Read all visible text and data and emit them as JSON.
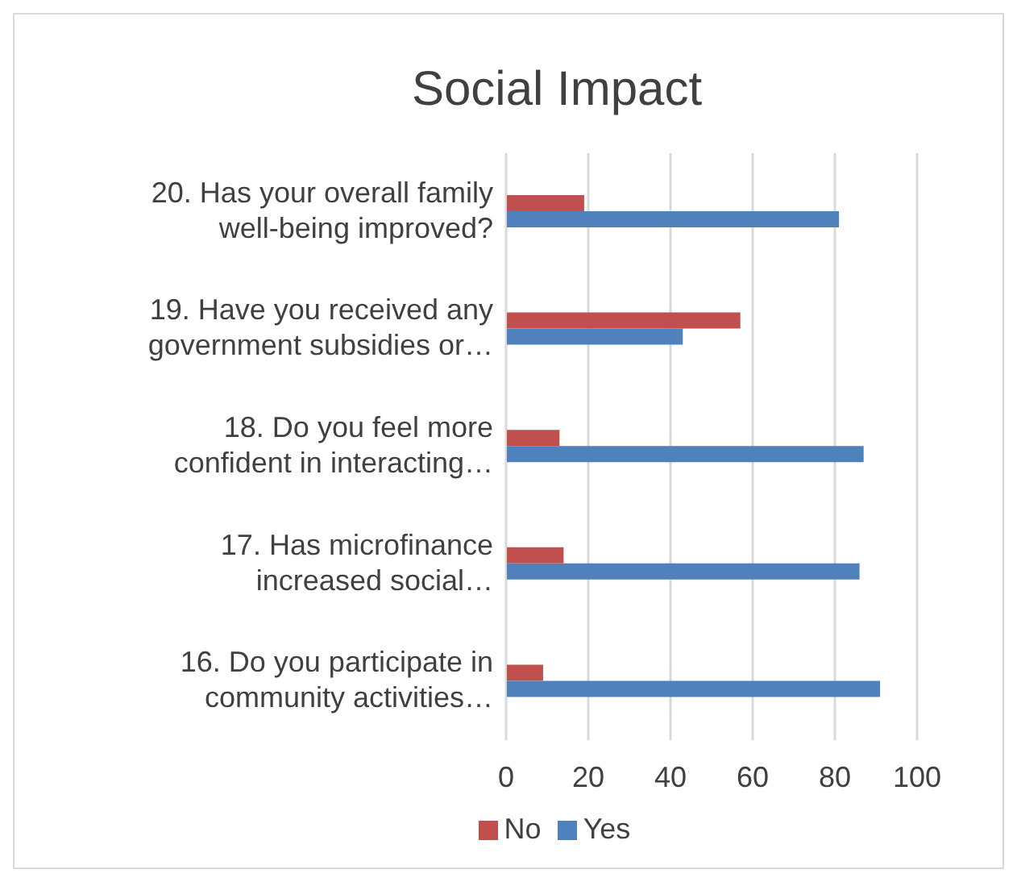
{
  "chart_data": {
    "type": "bar",
    "orientation": "horizontal",
    "title": "Social Impact",
    "categories": [
      "20. Has your overall family well-being improved?",
      "19. Have you received any government subsidies or…",
      "18. Do you feel more confident in interacting…",
      "17. Has microfinance increased social…",
      "16. Do you participate in community activities…"
    ],
    "series": [
      {
        "name": "No",
        "color": "#c0504d",
        "values": [
          19,
          57,
          13,
          14,
          9
        ]
      },
      {
        "name": "Yes",
        "color": "#4f81bd",
        "values": [
          81,
          43,
          87,
          86,
          91
        ]
      }
    ],
    "xlim": [
      0,
      100
    ],
    "xticks": [
      0,
      20,
      40,
      60,
      80,
      100
    ],
    "grid": "x",
    "legend": "bottom"
  }
}
